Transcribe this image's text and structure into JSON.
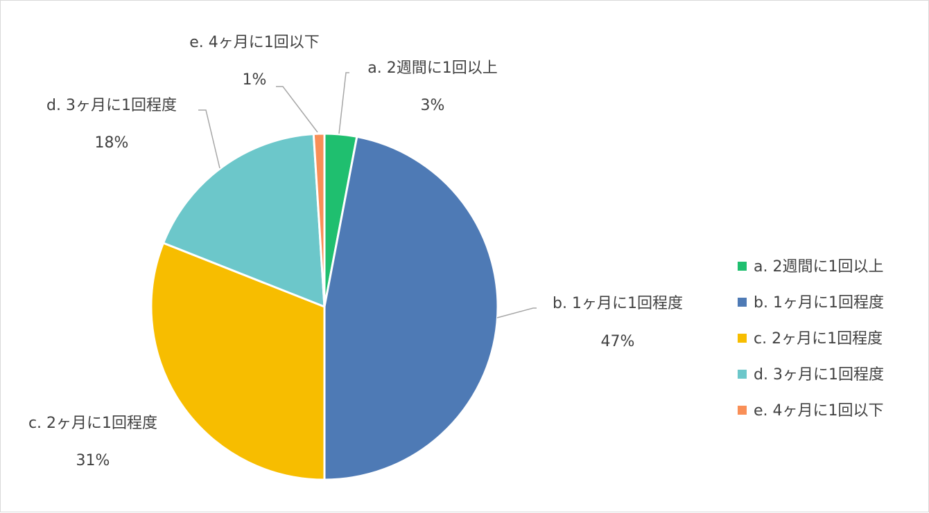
{
  "chart_data": {
    "type": "pie",
    "title": "",
    "categories": [
      "a. 2週間に1回以上",
      "b. 1ヶ月に1回程度",
      "c. 2ヶ月に1回程度",
      "d. 3ヶ月に1回程度",
      "e. 4ヶ月に1回以下"
    ],
    "values": [
      3,
      47,
      31,
      18,
      1
    ],
    "value_labels": [
      "3%",
      "47%",
      "31%",
      "18%",
      "1%"
    ],
    "colors": [
      "#1fbf6f",
      "#4e7ab5",
      "#f7bd00",
      "#6cc7ca",
      "#f98f57"
    ],
    "legend_position": "right",
    "data_labels": true,
    "leader_lines": true
  }
}
